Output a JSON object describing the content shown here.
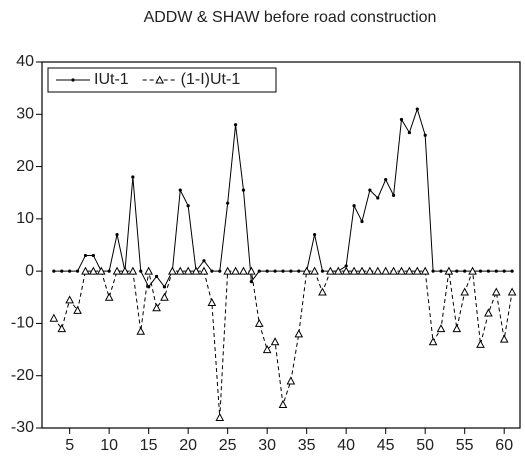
{
  "chart_data": {
    "type": "line",
    "title": "ADDW & SHAW before road construction",
    "x": [
      3,
      4,
      5,
      6,
      7,
      8,
      9,
      10,
      11,
      12,
      13,
      14,
      15,
      16,
      17,
      18,
      19,
      20,
      21,
      22,
      23,
      24,
      25,
      26,
      27,
      28,
      29,
      30,
      31,
      32,
      33,
      34,
      35,
      36,
      37,
      38,
      39,
      40,
      41,
      42,
      43,
      44,
      45,
      46,
      47,
      48,
      49,
      50,
      51,
      52,
      53,
      54,
      55,
      56,
      57,
      58,
      59,
      60,
      61
    ],
    "series": [
      {
        "name": "IUt-1",
        "color": "#000000",
        "dashed": false,
        "marker": "dot",
        "values": [
          0,
          0,
          0,
          0,
          3,
          3,
          0,
          0,
          7,
          0,
          18,
          0,
          -3,
          -1,
          -3,
          0,
          15.5,
          12.5,
          0,
          2,
          0,
          0,
          13,
          28,
          15.5,
          -2,
          0,
          0,
          0,
          0,
          0,
          0,
          0,
          7,
          0,
          0,
          0,
          1,
          12.5,
          9.5,
          15.5,
          14,
          17.5,
          14.5,
          29,
          26.5,
          31,
          26,
          0,
          0,
          0,
          0,
          0,
          0,
          0,
          0,
          0,
          0,
          0
        ]
      },
      {
        "name": "(1-I)Ut-1",
        "color": "#000000",
        "dashed": true,
        "marker": "triangle",
        "values": [
          -9,
          -11,
          -5.5,
          -7.5,
          0,
          0,
          0,
          -5,
          0,
          0,
          0,
          -11.5,
          0,
          -7,
          -5,
          0,
          0,
          0,
          0,
          0,
          -6,
          -28,
          0,
          0,
          0,
          0,
          -10,
          -15,
          -13.5,
          -25.5,
          -21,
          -12,
          0,
          0,
          -4,
          0,
          0,
          0,
          0,
          0,
          0,
          0,
          0,
          0,
          0,
          0,
          0,
          0,
          -13.5,
          -11,
          0,
          -11,
          -4,
          0,
          -14,
          -8,
          -4,
          -13,
          -4
        ]
      }
    ],
    "xlim": [
      1.5,
      62
    ],
    "xticks": [
      5,
      10,
      15,
      20,
      25,
      30,
      35,
      40,
      45,
      50,
      55,
      60
    ],
    "ylim": [
      -30,
      40
    ],
    "yticks": [
      -30,
      -20,
      -10,
      0,
      10,
      20,
      30,
      40
    ],
    "legend": "top-left"
  }
}
